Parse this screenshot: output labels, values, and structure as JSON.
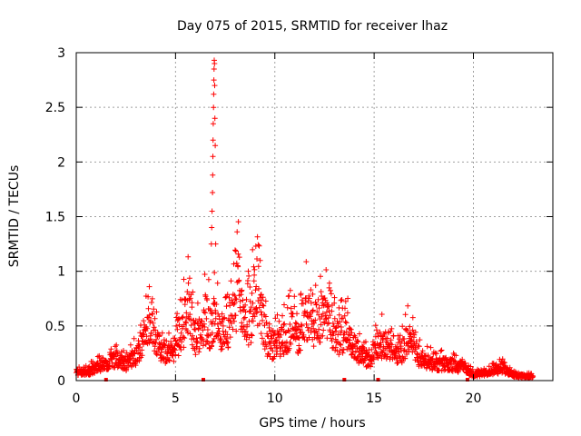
{
  "chart_data": {
    "type": "scatter",
    "title": "Day 075 of 2015, SRMTID for receiver lhaz",
    "xlabel": "GPS time / hours",
    "ylabel": "SRMTID / TECUs",
    "xlim": [
      0,
      24
    ],
    "ylim": [
      0,
      3
    ],
    "xticks": [
      0,
      5,
      10,
      15,
      20
    ],
    "yticks": [
      0,
      0.5,
      1,
      1.5,
      2,
      2.5,
      3
    ],
    "xtick_labels": [
      "0",
      "5",
      "10",
      "15",
      "20"
    ],
    "ytick_labels": [
      "0",
      "0.5",
      "1",
      "1.5",
      "2",
      "2.5",
      "3"
    ],
    "grid": true,
    "legend": "none",
    "marker": "+",
    "series": [
      {
        "name": "SRMTID",
        "color": "#ff0000",
        "envelope_x": [
          0,
          0.5,
          1,
          1.5,
          2,
          2.5,
          3,
          3.5,
          3.8,
          4,
          4.3,
          4.6,
          5,
          5.4,
          5.6,
          5.9,
          6.2,
          6.5,
          6.8,
          7,
          7.3,
          7.6,
          8,
          8.2,
          8.5,
          8.8,
          9,
          9.3,
          9.6,
          10,
          10.4,
          10.8,
          11.2,
          11.6,
          12,
          12.4,
          12.8,
          13.2,
          13.6,
          14,
          14.4,
          14.8,
          15.2,
          15.6,
          16,
          16.4,
          16.8,
          17.2,
          17.6,
          18,
          18.5,
          19,
          19.5,
          20,
          20.5,
          21,
          21.5,
          22,
          22.5,
          23
        ],
        "envelope_y": [
          0.1,
          0.1,
          0.15,
          0.2,
          0.25,
          0.2,
          0.3,
          0.55,
          0.75,
          0.5,
          0.35,
          0.3,
          0.4,
          0.65,
          0.9,
          0.55,
          0.5,
          0.75,
          0.6,
          0.8,
          0.55,
          0.6,
          0.9,
          1.1,
          0.75,
          0.7,
          1.1,
          0.85,
          0.5,
          0.4,
          0.5,
          0.6,
          0.55,
          0.8,
          0.6,
          0.85,
          0.7,
          0.5,
          0.6,
          0.4,
          0.3,
          0.25,
          0.45,
          0.45,
          0.3,
          0.35,
          0.55,
          0.3,
          0.25,
          0.2,
          0.2,
          0.18,
          0.15,
          0.07,
          0.08,
          0.12,
          0.15,
          0.07,
          0.05,
          0.05
        ],
        "spike_x": [
          6.8,
          6.82,
          6.84,
          6.86,
          6.87,
          6.88,
          6.89,
          6.9,
          6.91,
          6.92,
          6.93,
          6.94,
          6.95,
          6.96,
          6.97,
          6.98,
          7.0,
          7.02
        ],
        "spike_y": [
          1.25,
          1.4,
          1.55,
          1.72,
          1.88,
          2.05,
          2.2,
          2.35,
          2.5,
          2.62,
          2.75,
          2.85,
          2.93,
          2.9,
          2.7,
          2.4,
          2.15,
          1.25
        ],
        "points_per_hour": 75,
        "x_end": 23
      }
    ],
    "baseline_markers_x": [
      1.5,
      6.4,
      13.5,
      15.2,
      19.7
    ]
  }
}
